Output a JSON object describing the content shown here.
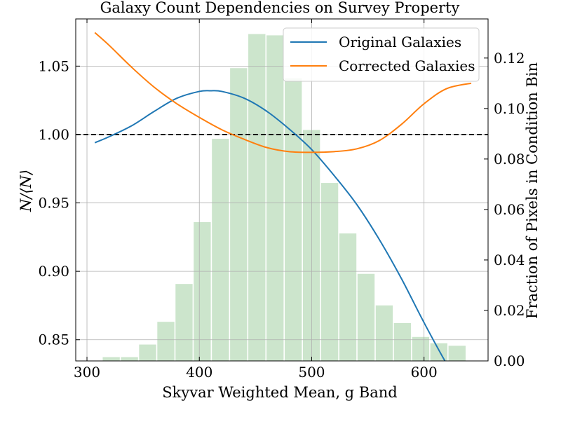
{
  "chart_data": {
    "type": "line",
    "title": "Galaxy Count Dependencies on Survey Property",
    "xlabel": "Skyvar Weighted Mean, g Band",
    "ylabel": "N/⟨N⟩",
    "y2label": "Fraction of Pixels in Condition Bin",
    "xlim": [
      290,
      657
    ],
    "ylim": [
      0.8345,
      1.0845
    ],
    "y2lim": [
      0.0,
      0.1355
    ],
    "xticks": [
      "300",
      "400",
      "500",
      "600"
    ],
    "yticks": [
      "0.85",
      "0.90",
      "0.95",
      "1.00",
      "1.05"
    ],
    "y2ticks": [
      "0.00",
      "0.02",
      "0.04",
      "0.06",
      "0.08",
      "0.10",
      "0.12"
    ],
    "reference_line": {
      "y": 1.0,
      "style": "dashed",
      "color": "#000000"
    },
    "grid": true,
    "legend_position": "upper-right",
    "colors": {
      "original": "#1f77b4",
      "corrected": "#ff7f0e",
      "histogram": "#cce5cc"
    },
    "series": [
      {
        "name": "Original Galaxies",
        "x": [
          307,
          320,
          340,
          360,
          380,
          400,
          410,
          420,
          440,
          460,
          480,
          500,
          520,
          540,
          560,
          580,
          600,
          620,
          642
        ],
        "y": [
          0.994,
          0.9985,
          1.0065,
          1.017,
          1.0265,
          1.0315,
          1.032,
          1.0315,
          1.0265,
          1.017,
          1.004,
          0.989,
          0.97,
          0.949,
          0.9235,
          0.8945,
          0.8625,
          0.8325,
          0.803
        ]
      },
      {
        "name": "Corrected Galaxies",
        "x": [
          307,
          320,
          340,
          360,
          380,
          400,
          420,
          440,
          460,
          480,
          500,
          520,
          540,
          560,
          580,
          600,
          620,
          642
        ],
        "y": [
          1.0745,
          1.065,
          1.049,
          1.0345,
          1.0225,
          1.0125,
          1.0035,
          0.9965,
          0.9905,
          0.9875,
          0.987,
          0.9875,
          0.9895,
          0.9955,
          1.0075,
          1.0225,
          1.0335,
          1.0375
        ]
      }
    ],
    "histogram": {
      "name": "Fraction of Pixels in Condition Bin",
      "bin_width": 16.2,
      "centers": [
        321.6,
        337.8,
        354.0,
        370.2,
        386.4,
        402.6,
        418.8,
        435.0,
        451.2,
        467.4,
        483.6,
        499.8,
        516.0,
        532.2,
        548.4,
        564.6,
        580.8,
        597.0,
        613.2,
        629.4
      ],
      "values": [
        0.0015,
        0.0015,
        0.0065,
        0.0155,
        0.0305,
        0.055,
        0.088,
        0.116,
        0.1295,
        0.129,
        0.112,
        0.0915,
        0.0705,
        0.0505,
        0.0345,
        0.022,
        0.015,
        0.0095,
        0.007,
        0.006
      ]
    }
  }
}
